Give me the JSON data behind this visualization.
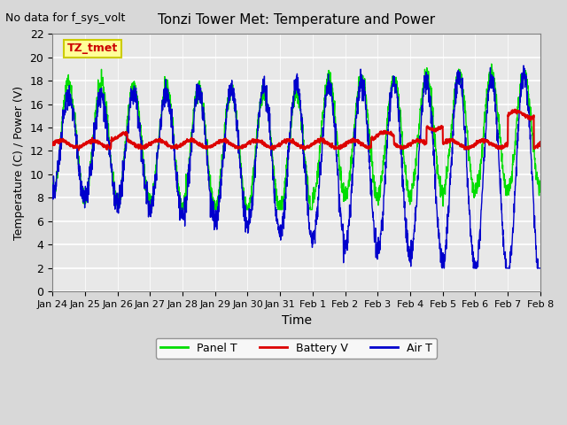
{
  "title": "Tonzi Tower Met: Temperature and Power",
  "xlabel": "Time",
  "ylabel": "Temperature (C) / Power (V)",
  "topleft_text": "No data for f_sys_volt",
  "annotation_box": "TZ_tmet",
  "ylim": [
    0,
    22
  ],
  "yticks": [
    0,
    2,
    4,
    6,
    8,
    10,
    12,
    14,
    16,
    18,
    20,
    22
  ],
  "xtick_labels": [
    "Jan 24",
    "Jan 25",
    "Jan 26",
    "Jan 27",
    "Jan 28",
    "Jan 29",
    "Jan 30",
    "Jan 31",
    "Feb 1",
    "Feb 2",
    "Feb 3",
    "Feb 4",
    "Feb 5",
    "Feb 6",
    "Feb 7",
    "Feb 8"
  ],
  "legend_entries": [
    "Panel T",
    "Battery V",
    "Air T"
  ],
  "line_colors": {
    "panel_t": "#00DD00",
    "battery_v": "#DD0000",
    "air_t": "#0000CC"
  },
  "bg_color": "#E8E8E8",
  "plot_bg_color": "#E8E8E8",
  "grid_color": "#FFFFFF",
  "box_facecolor": "#FFFF99",
  "box_edgecolor": "#CCCC00"
}
